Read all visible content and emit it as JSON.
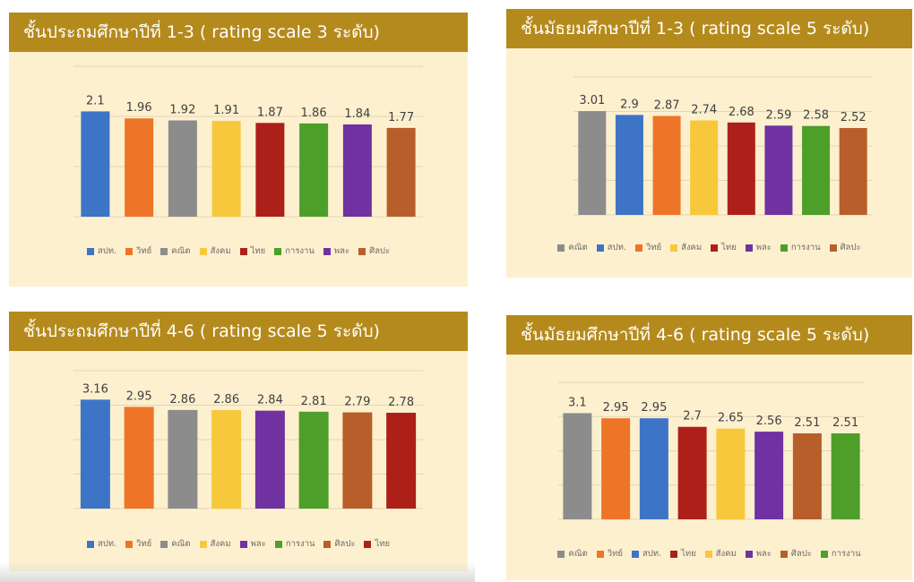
{
  "colors": {
    "blue": "#3d74c6",
    "orange": "#ee7428",
    "gray": "#8c8c8c",
    "yellow": "#f7c83b",
    "red": "#ad2019",
    "green": "#4e9e2a",
    "purple": "#7032a0",
    "brown": "#b85e2a",
    "panel_bg": "#fdf0cf",
    "title_bg": "#b58a1c"
  },
  "chart_data": [
    {
      "type": "bar",
      "title": "ชั้นประถมศึกษาปีที่ 1-3 ( rating scale 3 ระดับ)",
      "categories": [
        "สปท.",
        "วิทย์",
        "คณิต",
        "สังคม",
        "ไทย",
        "การงาน",
        "พละ",
        "ศิลปะ"
      ],
      "values": [
        2.1,
        1.96,
        1.92,
        1.91,
        1.87,
        1.86,
        1.84,
        1.77
      ],
      "value_labels": [
        "2.1",
        "1.96",
        "1.92",
        "1.91",
        "1.87",
        "1.86",
        "1.84",
        "1.77"
      ],
      "colors": [
        "#3d74c6",
        "#ee7428",
        "#8c8c8c",
        "#f7c83b",
        "#ad2019",
        "#4e9e2a",
        "#7032a0",
        "#b85e2a"
      ],
      "ylim": [
        0,
        3
      ],
      "grid": true,
      "legend": "bottom"
    },
    {
      "type": "bar",
      "title": "ชั้นมัธยมศึกษาปีที่ 1-3 ( rating scale 5 ระดับ)",
      "categories": [
        "คณิต",
        "สปท.",
        "วิทย์",
        "สังคม",
        "ไทย",
        "พละ",
        "การงาน",
        "ศิลปะ"
      ],
      "values": [
        3.01,
        2.9,
        2.87,
        2.74,
        2.68,
        2.59,
        2.58,
        2.52
      ],
      "value_labels": [
        "3.01",
        "2.9",
        "2.87",
        "2.74",
        "2.68",
        "2.59",
        "2.58",
        "2.52"
      ],
      "colors": [
        "#8c8c8c",
        "#3d74c6",
        "#ee7428",
        "#f7c83b",
        "#ad2019",
        "#7032a0",
        "#4e9e2a",
        "#b85e2a"
      ],
      "ylim": [
        0,
        4
      ],
      "grid": true,
      "legend": "bottom"
    },
    {
      "type": "bar",
      "title": "ชั้นประถมศึกษาปีที่ 4-6 ( rating scale 5 ระดับ)",
      "categories": [
        "สปท.",
        "วิทย์",
        "คณิต",
        "สังคม",
        "พละ",
        "การงาน",
        "ศิลปะ",
        "ไทย"
      ],
      "values": [
        3.16,
        2.95,
        2.86,
        2.86,
        2.84,
        2.81,
        2.79,
        2.78
      ],
      "value_labels": [
        "3.16",
        "2.95",
        "2.86",
        "2.86",
        "2.84",
        "2.81",
        "2.79",
        "2.78"
      ],
      "colors": [
        "#3d74c6",
        "#ee7428",
        "#8c8c8c",
        "#f7c83b",
        "#7032a0",
        "#4e9e2a",
        "#b85e2a",
        "#ad2019"
      ],
      "ylim": [
        0,
        4
      ],
      "grid": true,
      "legend": "bottom"
    },
    {
      "type": "bar",
      "title": "ชั้นมัธยมศึกษาปีที่ 4-6 ( rating scale 5 ระดับ)",
      "categories": [
        "คณิต",
        "วิทย์",
        "สปท.",
        "ไทย",
        "สังคม",
        "พละ",
        "ศิลปะ",
        "การงาน"
      ],
      "values": [
        3.1,
        2.95,
        2.95,
        2.7,
        2.65,
        2.56,
        2.51,
        2.51
      ],
      "value_labels": [
        "3.1",
        "2.95",
        "2.95",
        "2.7",
        "2.65",
        "2.56",
        "2.51",
        "2.51"
      ],
      "colors": [
        "#8c8c8c",
        "#ee7428",
        "#3d74c6",
        "#ad2019",
        "#f7c83b",
        "#7032a0",
        "#b85e2a",
        "#4e9e2a"
      ],
      "ylim": [
        0,
        4
      ],
      "grid": true,
      "legend": "bottom"
    }
  ]
}
